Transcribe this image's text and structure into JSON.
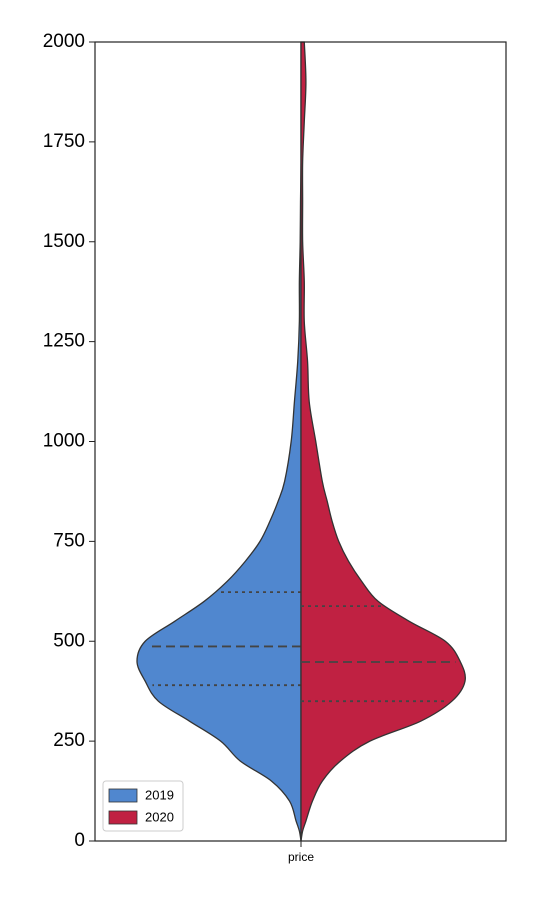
{
  "chart_data": {
    "type": "violin",
    "categories": [
      "price"
    ],
    "ylim": [
      0,
      2000
    ],
    "yticks": [
      0,
      250,
      500,
      750,
      1000,
      1250,
      1500,
      1750,
      2000
    ],
    "y": [
      0,
      25,
      50,
      100,
      150,
      200,
      250,
      300,
      350,
      400,
      450,
      500,
      550,
      600,
      650,
      700,
      750,
      800,
      850,
      900,
      1000,
      1100,
      1200,
      1300,
      1400,
      1500,
      1600,
      1700,
      1800,
      1900,
      2000
    ],
    "series": [
      {
        "name": "2019",
        "color": "#5087cf",
        "side": "left",
        "quartiles": [
          390,
          487,
          623
        ],
        "density": [
          0,
          0.01,
          0.03,
          0.07,
          0.18,
          0.37,
          0.49,
          0.68,
          0.87,
          0.95,
          1.0,
          0.95,
          0.77,
          0.59,
          0.45,
          0.34,
          0.25,
          0.19,
          0.14,
          0.1,
          0.06,
          0.04,
          0.02,
          0.01,
          0.01,
          0.005,
          0.003,
          0,
          0,
          0,
          0
        ]
      },
      {
        "name": "2020",
        "color": "#c02142",
        "side": "right",
        "quartiles": [
          350,
          448,
          588
        ],
        "density": [
          0,
          0.01,
          0.03,
          0.07,
          0.13,
          0.24,
          0.42,
          0.73,
          0.92,
          1.0,
          0.97,
          0.88,
          0.66,
          0.47,
          0.37,
          0.29,
          0.23,
          0.19,
          0.16,
          0.13,
          0.09,
          0.05,
          0.04,
          0.02,
          0.02,
          0.01,
          0.01,
          0.01,
          0.02,
          0.03,
          0.02
        ]
      }
    ],
    "legend": "lower left"
  }
}
